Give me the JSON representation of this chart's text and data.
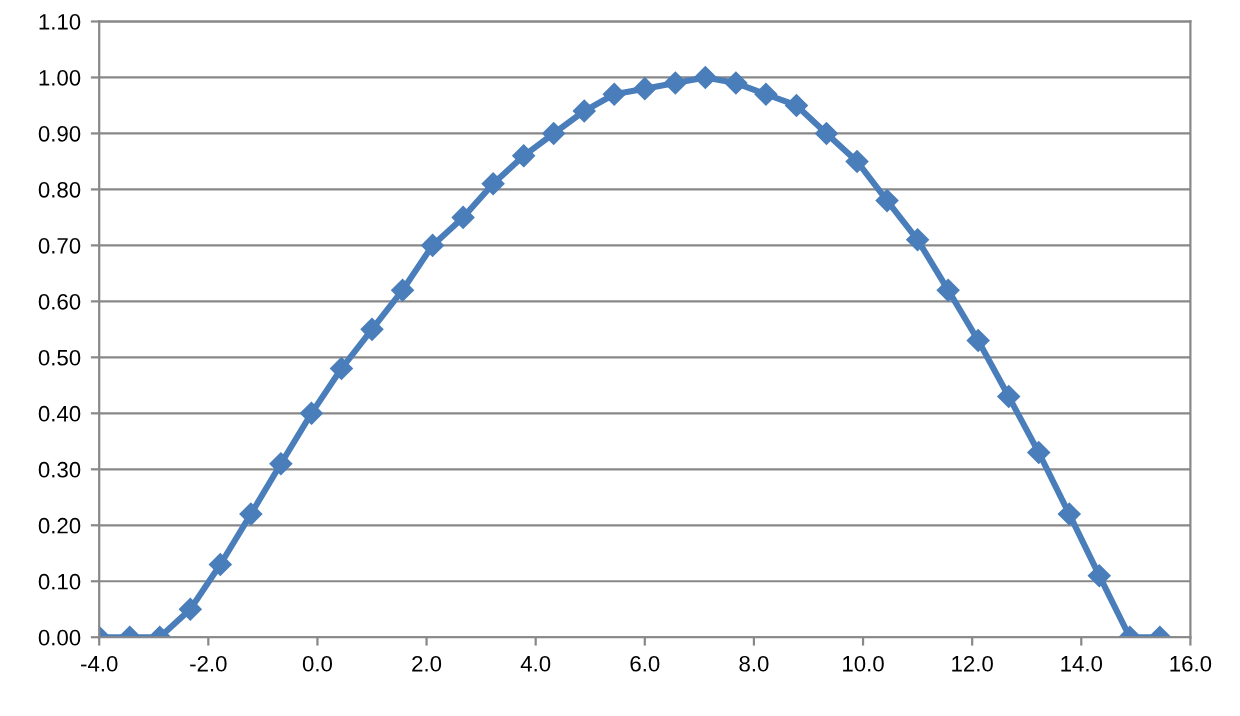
{
  "chart_data": {
    "type": "line",
    "marker": "diamond",
    "line_style": "solid",
    "grid": "y",
    "x": [
      -4.0,
      -3.44,
      -2.89,
      -2.33,
      -1.78,
      -1.22,
      -0.67,
      -0.11,
      0.44,
      1.0,
      1.56,
      2.11,
      2.67,
      3.22,
      3.78,
      4.33,
      4.89,
      5.44,
      6.0,
      6.56,
      7.11,
      7.67,
      8.22,
      8.78,
      9.33,
      9.89,
      10.44,
      11.0,
      11.56,
      12.11,
      12.67,
      13.22,
      13.78,
      14.33,
      14.89,
      15.44
    ],
    "series": [
      {
        "color": "#4a7ebb",
        "values": [
          0.0,
          0.0,
          0.0,
          0.05,
          0.13,
          0.22,
          0.31,
          0.4,
          0.48,
          0.55,
          0.62,
          0.7,
          0.75,
          0.81,
          0.86,
          0.9,
          0.94,
          0.97,
          0.98,
          0.99,
          1.0,
          0.99,
          0.97,
          0.95,
          0.9,
          0.85,
          0.78,
          0.71,
          0.62,
          0.53,
          0.43,
          0.33,
          0.22,
          0.11,
          0.0,
          0.0
        ]
      }
    ],
    "xlim": [
      -4,
      16
    ],
    "xticks": [
      {
        "value": -4,
        "label": "-4.0"
      },
      {
        "value": -2,
        "label": "-2.0"
      },
      {
        "value": 0,
        "label": "0.0"
      },
      {
        "value": 2,
        "label": "2.0"
      },
      {
        "value": 4,
        "label": "4.0"
      },
      {
        "value": 6,
        "label": "6.0"
      },
      {
        "value": 8,
        "label": "8.0"
      },
      {
        "value": 10,
        "label": "10.0"
      },
      {
        "value": 12,
        "label": "12.0"
      },
      {
        "value": 14,
        "label": "14.0"
      },
      {
        "value": 16,
        "label": "16.0"
      }
    ],
    "ylim": [
      0,
      1.1
    ],
    "yticks": [
      {
        "value": 0,
        "label": "0.00"
      },
      {
        "value": 0.1,
        "label": "0.10"
      },
      {
        "value": 0.2,
        "label": "0.20"
      },
      {
        "value": 0.3,
        "label": "0.30"
      },
      {
        "value": 0.4,
        "label": "0.40"
      },
      {
        "value": 0.5,
        "label": "0.50"
      },
      {
        "value": 0.6,
        "label": "0.60"
      },
      {
        "value": 0.7,
        "label": "0.70"
      },
      {
        "value": 0.8,
        "label": "0.80"
      },
      {
        "value": 0.9,
        "label": "0.90"
      },
      {
        "value": 1.0,
        "label": "1.00"
      },
      {
        "value": 1.1,
        "label": "1.10"
      }
    ]
  }
}
